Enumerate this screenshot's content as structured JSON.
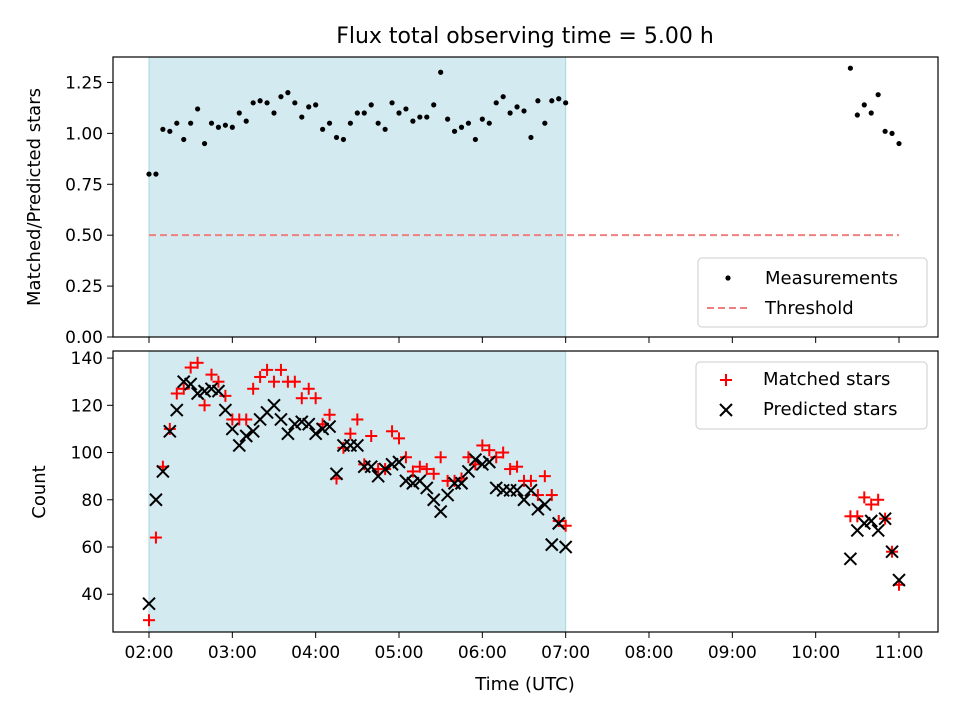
{
  "chart_data": [
    {
      "type": "scatter",
      "title": "Flux total observing time = 5.00 h",
      "xlabel": "",
      "ylabel": "Matched/Predicted stars",
      "ylim": [
        0,
        1.375
      ],
      "yticks": [
        "0.00",
        "0.25",
        "0.50",
        "0.75",
        "1.00",
        "1.25"
      ],
      "shaded_interval": [
        "02:00",
        "07:00"
      ],
      "legend_position": "lower-right",
      "series": [
        {
          "name": "Measurements",
          "marker": "dot",
          "color": "#000000",
          "points": [
            [
              "02:00",
              0.8
            ],
            [
              "02:05",
              0.8
            ],
            [
              "02:10",
              1.02
            ],
            [
              "02:15",
              1.01
            ],
            [
              "02:20",
              1.05
            ],
            [
              "02:25",
              0.97
            ],
            [
              "02:30",
              1.05
            ],
            [
              "02:35",
              1.12
            ],
            [
              "02:40",
              0.95
            ],
            [
              "02:45",
              1.05
            ],
            [
              "02:50",
              1.03
            ],
            [
              "02:55",
              1.04
            ],
            [
              "03:00",
              1.03
            ],
            [
              "03:05",
              1.1
            ],
            [
              "03:10",
              1.06
            ],
            [
              "03:15",
              1.15
            ],
            [
              "03:20",
              1.16
            ],
            [
              "03:25",
              1.15
            ],
            [
              "03:30",
              1.1
            ],
            [
              "03:35",
              1.18
            ],
            [
              "03:40",
              1.2
            ],
            [
              "03:45",
              1.15
            ],
            [
              "03:50",
              1.08
            ],
            [
              "03:55",
              1.13
            ],
            [
              "04:00",
              1.14
            ],
            [
              "04:05",
              1.02
            ],
            [
              "04:10",
              1.05
            ],
            [
              "04:15",
              0.98
            ],
            [
              "04:20",
              0.97
            ],
            [
              "04:25",
              1.05
            ],
            [
              "04:30",
              1.1
            ],
            [
              "04:35",
              1.1
            ],
            [
              "04:40",
              1.14
            ],
            [
              "04:45",
              1.05
            ],
            [
              "04:50",
              1.02
            ],
            [
              "04:55",
              1.15
            ],
            [
              "05:00",
              1.1
            ],
            [
              "05:05",
              1.12
            ],
            [
              "05:10",
              1.06
            ],
            [
              "05:15",
              1.08
            ],
            [
              "05:20",
              1.08
            ],
            [
              "05:25",
              1.14
            ],
            [
              "05:30",
              1.3
            ],
            [
              "05:35",
              1.07
            ],
            [
              "05:40",
              1.01
            ],
            [
              "05:45",
              1.03
            ],
            [
              "05:50",
              1.05
            ],
            [
              "05:55",
              0.97
            ],
            [
              "06:00",
              1.07
            ],
            [
              "06:05",
              1.05
            ],
            [
              "06:10",
              1.15
            ],
            [
              "06:15",
              1.18
            ],
            [
              "06:20",
              1.1
            ],
            [
              "06:25",
              1.13
            ],
            [
              "06:30",
              1.11
            ],
            [
              "06:35",
              0.98
            ],
            [
              "06:40",
              1.16
            ],
            [
              "06:45",
              1.05
            ],
            [
              "06:50",
              1.16
            ],
            [
              "06:55",
              1.17
            ],
            [
              "07:00",
              1.15
            ],
            [
              "10:25",
              1.32
            ],
            [
              "10:30",
              1.09
            ],
            [
              "10:35",
              1.14
            ],
            [
              "10:40",
              1.1
            ],
            [
              "10:45",
              1.19
            ],
            [
              "10:50",
              1.01
            ],
            [
              "10:55",
              1.0
            ],
            [
              "11:00",
              0.95
            ]
          ]
        },
        {
          "name": "Threshold",
          "marker": "dashed-line",
          "color": "#f08080",
          "points": [
            [
              "02:00",
              0.5
            ],
            [
              "11:00",
              0.5
            ]
          ]
        }
      ]
    },
    {
      "type": "scatter",
      "title": "",
      "xlabel": "Time (UTC)",
      "ylabel": "Count",
      "ylim": [
        24,
        143
      ],
      "yticks": [
        "40",
        "60",
        "80",
        "100",
        "120",
        "140"
      ],
      "xticks": [
        "02:00",
        "03:00",
        "04:00",
        "05:00",
        "06:00",
        "07:00",
        "08:00",
        "09:00",
        "10:00",
        "11:00"
      ],
      "shaded_interval": [
        "02:00",
        "07:00"
      ],
      "legend_position": "upper-right",
      "series": [
        {
          "name": "Matched stars",
          "marker": "plus",
          "color": "#ff0000",
          "points": [
            [
              "02:00",
              29
            ],
            [
              "02:05",
              64
            ],
            [
              "02:10",
              94
            ],
            [
              "02:15",
              110
            ],
            [
              "02:20",
              125
            ],
            [
              "02:25",
              127
            ],
            [
              "02:30",
              136
            ],
            [
              "02:35",
              138
            ],
            [
              "02:40",
              120
            ],
            [
              "02:45",
              133
            ],
            [
              "02:50",
              130
            ],
            [
              "02:55",
              124
            ],
            [
              "03:00",
              114
            ],
            [
              "03:05",
              114
            ],
            [
              "03:10",
              114
            ],
            [
              "03:15",
              127
            ],
            [
              "03:20",
              132
            ],
            [
              "03:25",
              135
            ],
            [
              "03:30",
              130
            ],
            [
              "03:35",
              135
            ],
            [
              "03:40",
              130
            ],
            [
              "03:45",
              130
            ],
            [
              "03:50",
              123
            ],
            [
              "03:55",
              127
            ],
            [
              "04:00",
              123
            ],
            [
              "04:05",
              112
            ],
            [
              "04:10",
              116
            ],
            [
              "04:15",
              89
            ],
            [
              "04:20",
              102
            ],
            [
              "04:25",
              108
            ],
            [
              "04:30",
              114
            ],
            [
              "04:35",
              95
            ],
            [
              "04:40",
              107
            ],
            [
              "04:45",
              93
            ],
            [
              "04:50",
              93
            ],
            [
              "04:55",
              109
            ],
            [
              "05:00",
              106
            ],
            [
              "05:05",
              98
            ],
            [
              "05:10",
              92
            ],
            [
              "05:15",
              94
            ],
            [
              "05:20",
              93
            ],
            [
              "05:25",
              91
            ],
            [
              "05:30",
              98
            ],
            [
              "05:35",
              88
            ],
            [
              "05:40",
              88
            ],
            [
              "05:45",
              89
            ],
            [
              "05:50",
              98
            ],
            [
              "05:55",
              95
            ],
            [
              "06:00",
              103
            ],
            [
              "06:05",
              101
            ],
            [
              "06:10",
              98
            ],
            [
              "06:15",
              100
            ],
            [
              "06:20",
              93
            ],
            [
              "06:25",
              94
            ],
            [
              "06:30",
              88
            ],
            [
              "06:35",
              88
            ],
            [
              "06:40",
              82
            ],
            [
              "06:45",
              90
            ],
            [
              "06:50",
              82
            ],
            [
              "06:55",
              71
            ],
            [
              "07:00",
              69
            ],
            [
              "10:25",
              73
            ],
            [
              "10:30",
              73
            ],
            [
              "10:35",
              81
            ],
            [
              "10:40",
              78
            ],
            [
              "10:45",
              80
            ],
            [
              "10:50",
              72
            ],
            [
              "10:55",
              58
            ],
            [
              "11:00",
              44
            ]
          ]
        },
        {
          "name": "Predicted stars",
          "marker": "x",
          "color": "#000000",
          "points": [
            [
              "02:00",
              36
            ],
            [
              "02:05",
              80
            ],
            [
              "02:10",
              92
            ],
            [
              "02:15",
              109
            ],
            [
              "02:20",
              118
            ],
            [
              "02:25",
              130
            ],
            [
              "02:30",
              129
            ],
            [
              "02:35",
              125
            ],
            [
              "02:40",
              126
            ],
            [
              "02:45",
              127
            ],
            [
              "02:50",
              126
            ],
            [
              "02:55",
              118
            ],
            [
              "03:00",
              110
            ],
            [
              "03:05",
              103
            ],
            [
              "03:10",
              107
            ],
            [
              "03:15",
              109
            ],
            [
              "03:20",
              114
            ],
            [
              "03:25",
              117
            ],
            [
              "03:30",
              120
            ],
            [
              "03:35",
              114
            ],
            [
              "03:40",
              108
            ],
            [
              "03:45",
              112
            ],
            [
              "03:50",
              113
            ],
            [
              "03:55",
              112
            ],
            [
              "04:00",
              108
            ],
            [
              "04:05",
              110
            ],
            [
              "04:10",
              111
            ],
            [
              "04:15",
              91
            ],
            [
              "04:20",
              103
            ],
            [
              "04:25",
              103
            ],
            [
              "04:30",
              103
            ],
            [
              "04:35",
              94
            ],
            [
              "04:40",
              94
            ],
            [
              "04:45",
              90
            ],
            [
              "04:50",
              93
            ],
            [
              "04:55",
              95
            ],
            [
              "05:00",
              96
            ],
            [
              "05:05",
              88
            ],
            [
              "05:10",
              87
            ],
            [
              "05:15",
              88
            ],
            [
              "05:20",
              85
            ],
            [
              "05:25",
              80
            ],
            [
              "05:30",
              75
            ],
            [
              "05:35",
              82
            ],
            [
              "05:40",
              87
            ],
            [
              "05:45",
              87
            ],
            [
              "05:50",
              92
            ],
            [
              "05:55",
              97
            ],
            [
              "06:00",
              95
            ],
            [
              "06:05",
              96
            ],
            [
              "06:10",
              85
            ],
            [
              "06:15",
              84
            ],
            [
              "06:20",
              84
            ],
            [
              "06:25",
              84
            ],
            [
              "06:30",
              80
            ],
            [
              "06:35",
              84
            ],
            [
              "06:40",
              76
            ],
            [
              "06:45",
              78
            ],
            [
              "06:50",
              61
            ],
            [
              "06:55",
              70
            ],
            [
              "07:00",
              60
            ],
            [
              "10:25",
              55
            ],
            [
              "10:30",
              67
            ],
            [
              "10:35",
              70
            ],
            [
              "10:40",
              71
            ],
            [
              "10:45",
              67
            ],
            [
              "10:50",
              72
            ],
            [
              "10:55",
              58
            ],
            [
              "11:00",
              46
            ]
          ]
        }
      ]
    }
  ],
  "colors": {
    "shade": "#d3eaf0",
    "shade_edge": "#a6d8e0",
    "axis": "#000000"
  }
}
